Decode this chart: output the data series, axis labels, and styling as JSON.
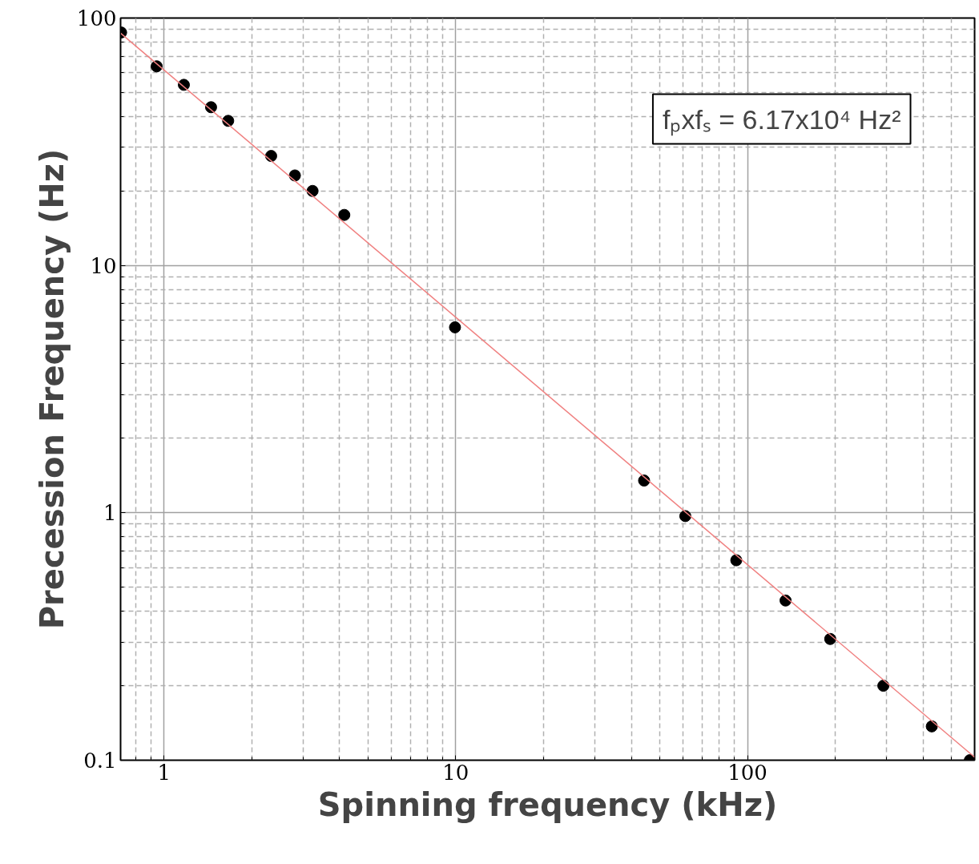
{
  "chart_data": {
    "type": "scatter",
    "xlabel": "Spinning frequency (kHz)",
    "ylabel": "Precession Frequency (Hz)",
    "log": "xy",
    "grid": true,
    "marker": "circle",
    "xlim": [
      0.71,
      600
    ],
    "ylim": [
      0.1,
      100
    ],
    "xticks": [
      1,
      10,
      100
    ],
    "yticks": [
      0.1,
      1,
      10,
      100
    ],
    "series": [
      {
        "color": "#000000",
        "x": [
          0.713,
          0.944,
          1.17,
          1.45,
          1.66,
          2.33,
          2.81,
          3.23,
          4.15,
          9.94,
          44.2,
          61.2,
          91.5,
          135,
          192,
          292,
          428,
          578
        ],
        "values": [
          87.4,
          63.8,
          53.7,
          43.6,
          38.4,
          27.7,
          23.1,
          20.0,
          16.0,
          5.62,
          1.35,
          0.97,
          0.643,
          0.442,
          0.309,
          0.2,
          0.137,
          0.1
        ]
      },
      {
        "type": "line",
        "marker": "none",
        "color": "#f08080",
        "x": [
          0.71,
          600
        ],
        "values": [
          86.9,
          0.1028
        ]
      }
    ],
    "annotations": [
      "fₚxfₛ = 6.17x10⁴ Hz²"
    ]
  }
}
